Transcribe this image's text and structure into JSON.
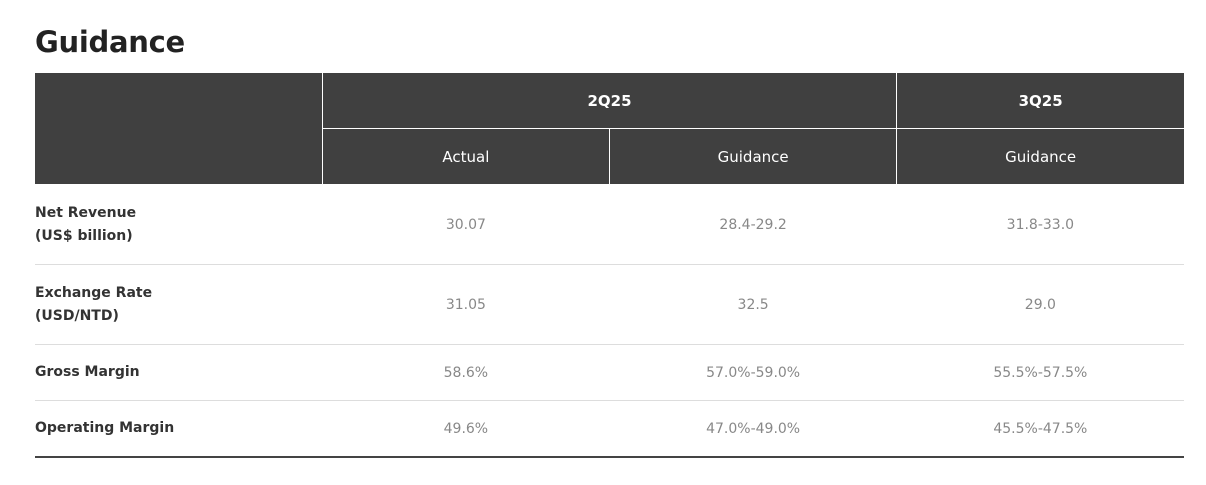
{
  "title": "Guidance",
  "header": {
    "periods": [
      {
        "label": "2Q25"
      },
      {
        "label": "3Q25"
      }
    ],
    "subheaders": [
      "Actual",
      "Guidance",
      "Guidance"
    ]
  },
  "rows": [
    {
      "label_line1": "Net Revenue",
      "label_line2": "(US$ billion)",
      "values": [
        "30.07",
        "28.4-29.2",
        "31.8-33.0"
      ]
    },
    {
      "label_line1": "Exchange Rate",
      "label_line2": "(USD/NTD)",
      "values": [
        "31.05",
        "32.5",
        "29.0"
      ]
    },
    {
      "label_line1": "Gross Margin",
      "label_line2": "",
      "values": [
        "58.6%",
        "57.0%-59.0%",
        "55.5%-57.5%"
      ]
    },
    {
      "label_line1": "Operating Margin",
      "label_line2": "",
      "values": [
        "49.6%",
        "47.0%-49.0%",
        "45.5%-47.5%"
      ]
    }
  ],
  "colors": {
    "header_bg": "#404040",
    "header_text": "#ffffff",
    "label_text": "#333333",
    "value_text": "#888888"
  }
}
